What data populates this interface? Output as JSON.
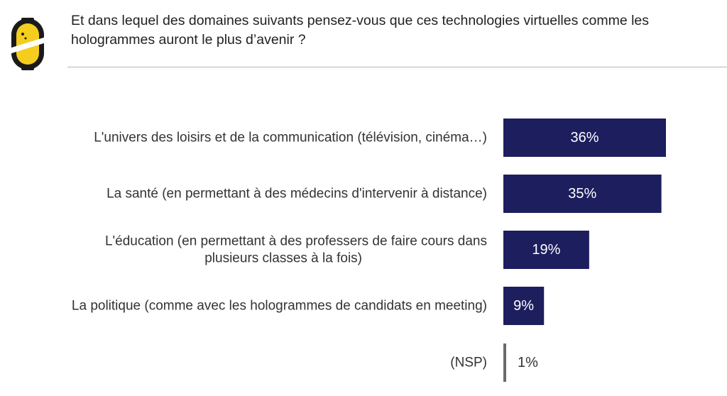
{
  "question": {
    "lines": [
      "Et dans lequel des domaines suivants pensez-vous que ces technologies virtuelles comme les",
      "hologrammes auront le plus d’avenir ?"
    ]
  },
  "colors": {
    "bar": "#1c1e5e",
    "bar_label": "#ffffff",
    "nsp_bar": "#6b6b6b",
    "outside_label": "#333333",
    "logo_yellow": "#f5cd1e",
    "logo_dark": "#1a1a1a"
  },
  "chart_data": {
    "type": "bar",
    "orientation": "horizontal",
    "categories": [
      [
        "L'univers des loisirs et de la communication (télévision, cinéma…)"
      ],
      [
        "La santé (en permettant à des médecins d'intervenir à distance)"
      ],
      [
        "L'éducation (en permettant à des professers de faire cours dans",
        "plusieurs classes à la fois)"
      ],
      [
        "La politique (comme avec les hologrammes de candidats en meeting)"
      ],
      [
        "(NSP)"
      ]
    ],
    "values": [
      36,
      35,
      19,
      9,
      1
    ],
    "value_labels": [
      "36%",
      "35%",
      "19%",
      "9%",
      "1%"
    ],
    "unit": "%",
    "xlim": [
      0,
      36
    ],
    "grid": false,
    "legend": "none"
  }
}
